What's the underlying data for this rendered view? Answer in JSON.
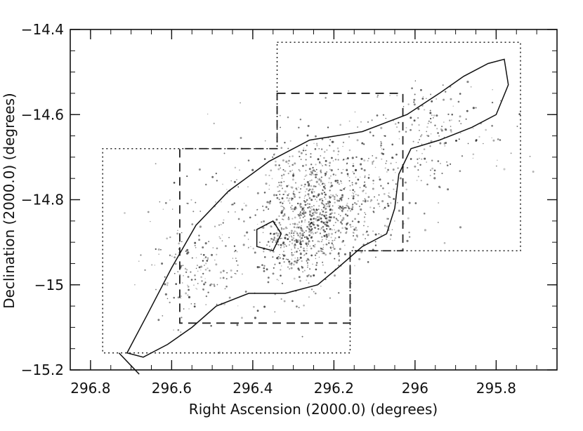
{
  "chart_data": {
    "type": "scatter",
    "title": "",
    "xlabel": "Right Ascension (2000.0) (degrees)",
    "ylabel": "Declination (2000.0) (degrees)",
    "xlim": [
      296.85,
      295.65
    ],
    "ylim": [
      -15.2,
      -14.4
    ],
    "x_reversed": true,
    "grid": false,
    "legend": "none",
    "x_ticks": [
      296.8,
      296.6,
      296.4,
      296.2,
      296.0,
      295.8
    ],
    "x_tick_labels": [
      "296.8",
      "296.6",
      "296.4",
      "296.2",
      "296",
      "295.8"
    ],
    "y_ticks": [
      -14.4,
      -14.6,
      -14.8,
      -15.0,
      -15.2
    ],
    "y_tick_labels": [
      "−14.4",
      "−14.6",
      "−14.8",
      "−15",
      "−15.2"
    ],
    "regions": [
      {
        "name": "dotted-field",
        "style": "dotted",
        "points": [
          [
            296.34,
            -14.43
          ],
          [
            295.74,
            -14.43
          ],
          [
            295.74,
            -14.92
          ],
          [
            296.16,
            -14.92
          ],
          [
            296.16,
            -15.16
          ],
          [
            296.77,
            -15.16
          ],
          [
            296.77,
            -14.68
          ],
          [
            296.34,
            -14.68
          ]
        ]
      },
      {
        "name": "dashed-field",
        "style": "dashed",
        "points": [
          [
            296.34,
            -14.55
          ],
          [
            296.03,
            -14.55
          ],
          [
            296.03,
            -14.92
          ],
          [
            296.16,
            -14.92
          ],
          [
            296.16,
            -15.09
          ],
          [
            296.58,
            -15.09
          ],
          [
            296.58,
            -14.68
          ],
          [
            296.34,
            -14.68
          ]
        ]
      }
    ],
    "contours": [
      {
        "name": "outer-isophote",
        "closed": true,
        "points": [
          [
            296.71,
            -15.16
          ],
          [
            296.66,
            -15.07
          ],
          [
            296.6,
            -14.96
          ],
          [
            296.54,
            -14.86
          ],
          [
            296.46,
            -14.78
          ],
          [
            296.36,
            -14.71
          ],
          [
            296.26,
            -14.66
          ],
          [
            296.13,
            -14.64
          ],
          [
            296.02,
            -14.6
          ],
          [
            295.94,
            -14.55
          ],
          [
            295.88,
            -14.51
          ],
          [
            295.82,
            -14.48
          ],
          [
            295.78,
            -14.47
          ],
          [
            295.77,
            -14.53
          ],
          [
            295.8,
            -14.6
          ],
          [
            295.86,
            -14.63
          ],
          [
            295.94,
            -14.66
          ],
          [
            296.01,
            -14.68
          ],
          [
            296.04,
            -14.74
          ],
          [
            296.05,
            -14.82
          ],
          [
            296.07,
            -14.88
          ],
          [
            296.13,
            -14.91
          ],
          [
            296.19,
            -14.96
          ],
          [
            296.24,
            -15.0
          ],
          [
            296.32,
            -15.02
          ],
          [
            296.41,
            -15.02
          ],
          [
            296.49,
            -15.05
          ],
          [
            296.55,
            -15.1
          ],
          [
            296.61,
            -15.14
          ],
          [
            296.67,
            -15.17
          ]
        ]
      },
      {
        "name": "inner-isophote",
        "closed": true,
        "points": [
          [
            296.39,
            -14.87
          ],
          [
            296.35,
            -14.85
          ],
          [
            296.33,
            -14.88
          ],
          [
            296.35,
            -14.92
          ],
          [
            296.39,
            -14.91
          ]
        ]
      },
      {
        "name": "tail-isophote",
        "closed": false,
        "points": [
          [
            296.73,
            -15.16
          ],
          [
            296.7,
            -15.19
          ],
          [
            296.68,
            -15.21
          ]
        ]
      }
    ],
    "density_blobs": [
      {
        "x": 296.25,
        "y": -14.77,
        "sx": 0.06,
        "sy": 0.06,
        "n": 340
      },
      {
        "x": 296.22,
        "y": -14.85,
        "sx": 0.05,
        "sy": 0.05,
        "n": 260
      },
      {
        "x": 296.29,
        "y": -14.9,
        "sx": 0.05,
        "sy": 0.05,
        "n": 300
      },
      {
        "x": 296.1,
        "y": -14.76,
        "sx": 0.08,
        "sy": 0.08,
        "n": 220
      },
      {
        "x": 296.42,
        "y": -14.86,
        "sx": 0.12,
        "sy": 0.1,
        "n": 220
      },
      {
        "x": 295.95,
        "y": -14.63,
        "sx": 0.09,
        "sy": 0.06,
        "n": 160
      },
      {
        "x": 296.55,
        "y": -14.98,
        "sx": 0.06,
        "sy": 0.06,
        "n": 120
      }
    ]
  }
}
